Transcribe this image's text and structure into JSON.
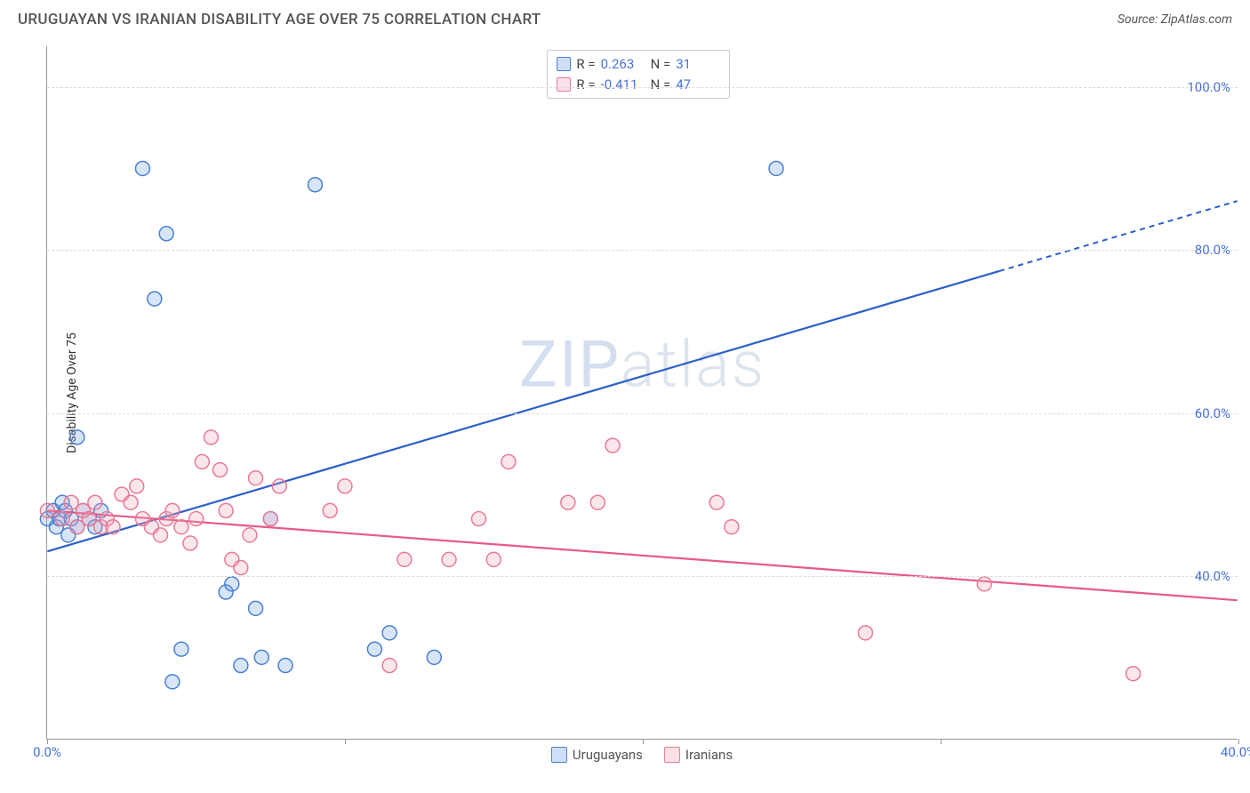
{
  "title": "URUGUAYAN VS IRANIAN DISABILITY AGE OVER 75 CORRELATION CHART",
  "source": "Source: ZipAtlas.com",
  "watermark_a": "ZIP",
  "watermark_b": "atlas",
  "y_axis_label": "Disability Age Over 75",
  "chart": {
    "type": "scatter",
    "background_color": "#ffffff",
    "grid_color": "#dddddd",
    "axis_color": "#999999",
    "tick_label_color": "#4a72d4",
    "xlim": [
      0,
      40
    ],
    "ylim": [
      20,
      105
    ],
    "y_gridlines": [
      40,
      60,
      80,
      100
    ],
    "y_tick_labels": [
      "40.0%",
      "60.0%",
      "80.0%",
      "100.0%"
    ],
    "x_ticks": [
      0,
      10,
      20,
      30,
      40
    ],
    "x_tick_labels": [
      "0.0%",
      "",
      "",
      "",
      "40.0%"
    ],
    "marker_radius": 8,
    "marker_stroke_width": 1.5,
    "marker_fill_opacity": 0.28,
    "series": [
      {
        "key": "uruguayans",
        "legend_label": "Uruguayans",
        "color": "#6fa0e6",
        "stroke": "#4a7fd0",
        "stats": {
          "R": "0.263",
          "N": "31"
        },
        "trend": {
          "color": "#2b5fc7",
          "solid_to_x": 32,
          "y0": 43,
          "y40": 86
        },
        "points": [
          [
            0.0,
            47
          ],
          [
            0.2,
            48
          ],
          [
            0.3,
            46
          ],
          [
            0.4,
            47
          ],
          [
            0.5,
            49
          ],
          [
            0.6,
            48
          ],
          [
            0.8,
            47
          ],
          [
            1.0,
            46
          ],
          [
            1.2,
            48
          ],
          [
            1.4,
            47
          ],
          [
            1.6,
            46
          ],
          [
            1.8,
            48
          ],
          [
            1.0,
            57
          ],
          [
            3.2,
            90
          ],
          [
            3.6,
            74
          ],
          [
            4.0,
            82
          ],
          [
            4.2,
            27
          ],
          [
            4.5,
            31
          ],
          [
            6.0,
            38
          ],
          [
            6.2,
            39
          ],
          [
            6.5,
            29
          ],
          [
            7.0,
            36
          ],
          [
            7.2,
            30
          ],
          [
            8.0,
            29
          ],
          [
            7.5,
            47
          ],
          [
            9.0,
            88
          ],
          [
            11.0,
            31
          ],
          [
            11.5,
            33
          ],
          [
            13.0,
            30
          ],
          [
            24.5,
            90
          ],
          [
            0.7,
            45
          ]
        ]
      },
      {
        "key": "iranians",
        "legend_label": "Iranians",
        "color": "#f2a4b6",
        "stroke": "#e67a96",
        "stats": {
          "R": "-0.411",
          "N": "47"
        },
        "trend": {
          "color": "#e65a86",
          "y0": 48,
          "y40": 37
        },
        "points": [
          [
            0.0,
            48
          ],
          [
            0.5,
            47
          ],
          [
            0.8,
            49
          ],
          [
            1.0,
            46
          ],
          [
            1.2,
            48
          ],
          [
            1.4,
            47
          ],
          [
            1.6,
            49
          ],
          [
            1.8,
            46
          ],
          [
            2.0,
            47
          ],
          [
            2.2,
            46
          ],
          [
            2.5,
            50
          ],
          [
            2.8,
            49
          ],
          [
            3.0,
            51
          ],
          [
            3.2,
            47
          ],
          [
            3.5,
            46
          ],
          [
            3.8,
            45
          ],
          [
            4.0,
            47
          ],
          [
            4.2,
            48
          ],
          [
            4.5,
            46
          ],
          [
            4.8,
            44
          ],
          [
            5.0,
            47
          ],
          [
            5.2,
            54
          ],
          [
            5.5,
            57
          ],
          [
            5.8,
            53
          ],
          [
            6.0,
            48
          ],
          [
            6.2,
            42
          ],
          [
            6.5,
            41
          ],
          [
            6.8,
            45
          ],
          [
            7.0,
            52
          ],
          [
            7.5,
            47
          ],
          [
            7.8,
            51
          ],
          [
            9.5,
            48
          ],
          [
            10.0,
            51
          ],
          [
            11.5,
            29
          ],
          [
            12.0,
            42
          ],
          [
            13.5,
            42
          ],
          [
            14.5,
            47
          ],
          [
            15.0,
            42
          ],
          [
            15.5,
            54
          ],
          [
            17.5,
            49
          ],
          [
            18.5,
            49
          ],
          [
            19.0,
            56
          ],
          [
            22.5,
            49
          ],
          [
            23.0,
            46
          ],
          [
            27.5,
            33
          ],
          [
            31.5,
            39
          ],
          [
            36.5,
            28
          ]
        ]
      }
    ]
  },
  "stats_labels": {
    "R": "R  =",
    "N": "N  ="
  },
  "legend": {
    "uruguayans": "Uruguayans",
    "iranians": "Iranians"
  }
}
